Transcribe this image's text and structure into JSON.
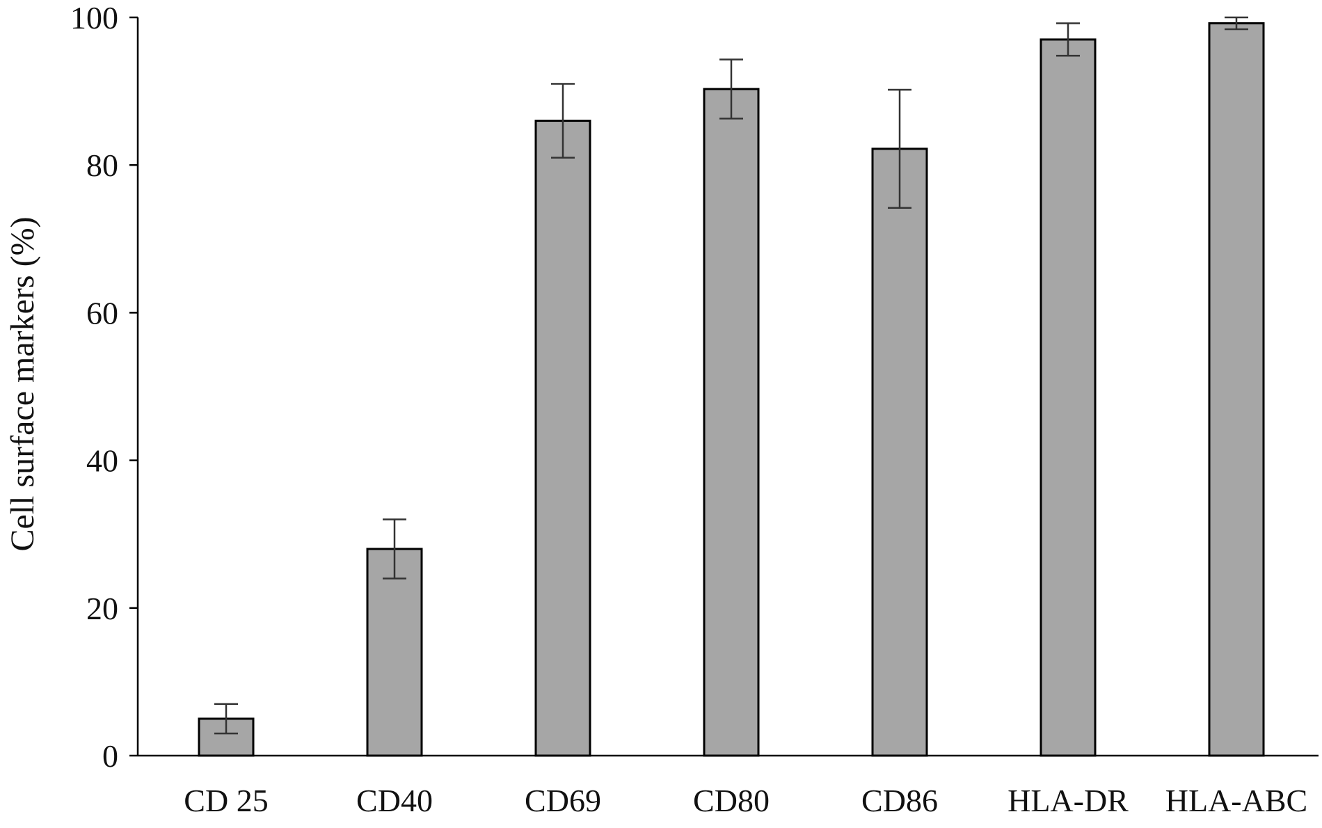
{
  "chart_data": {
    "type": "bar",
    "title": "",
    "xlabel": "",
    "ylabel": "Cell surface markers (%)",
    "ylim": [
      0,
      100
    ],
    "yticks": [
      0,
      20,
      40,
      60,
      80,
      100
    ],
    "grid": false,
    "categories": [
      "CD 25",
      "CD40",
      "CD69",
      "CD80",
      "CD86",
      "HLA-DR",
      "HLA-ABC"
    ],
    "values": [
      5.0,
      28.0,
      86.0,
      90.3,
      82.2,
      97.0,
      99.2
    ],
    "error": [
      2.0,
      4.0,
      5.0,
      4.0,
      8.0,
      2.2,
      0.8
    ],
    "bar_color": "#a6a6a6",
    "bar_edge_color": "#000000"
  }
}
